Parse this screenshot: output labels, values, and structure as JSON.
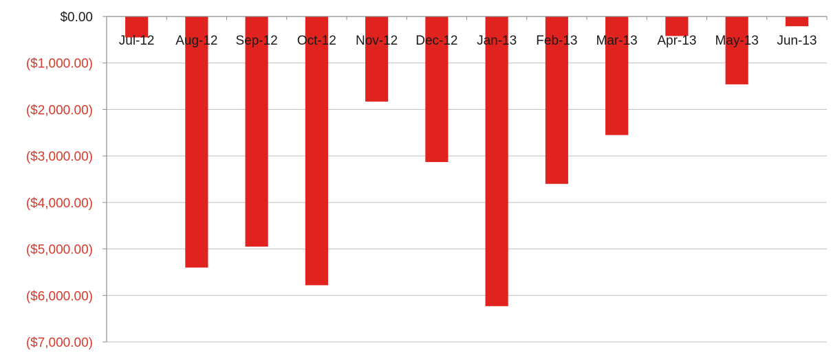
{
  "chart_data": {
    "type": "bar",
    "categories": [
      "Jul-12",
      "Aug-12",
      "Sep-12",
      "Oct-12",
      "Nov-12",
      "Dec-12",
      "Jan-13",
      "Feb-13",
      "Mar-13",
      "Apr-13",
      "May-13",
      "Jun-13"
    ],
    "values": [
      -450,
      -5400,
      -4950,
      -5780,
      -1830,
      -3130,
      -6230,
      -3600,
      -2550,
      -420,
      -1460,
      -210
    ],
    "ylim": [
      -7000,
      0
    ],
    "yticks": [
      0,
      -1000,
      -2000,
      -3000,
      -4000,
      -5000,
      -6000,
      -7000
    ],
    "ytick_labels": [
      "$0.00",
      "($1,000.00)",
      "($2,000.00)",
      "($3,000.00)",
      "($4,000.00)",
      "($5,000.00)",
      "($6,000.00)",
      "($7,000.00)"
    ],
    "category_axis_position": "top",
    "grid": true,
    "legend": "none",
    "colors": {
      "bar": "#e0231e",
      "negative_tick_label": "#d93a2b",
      "zero_tick_label": "#1a1a1a",
      "grid": "#bdbdbd",
      "axis": "#8c8c8c"
    }
  }
}
